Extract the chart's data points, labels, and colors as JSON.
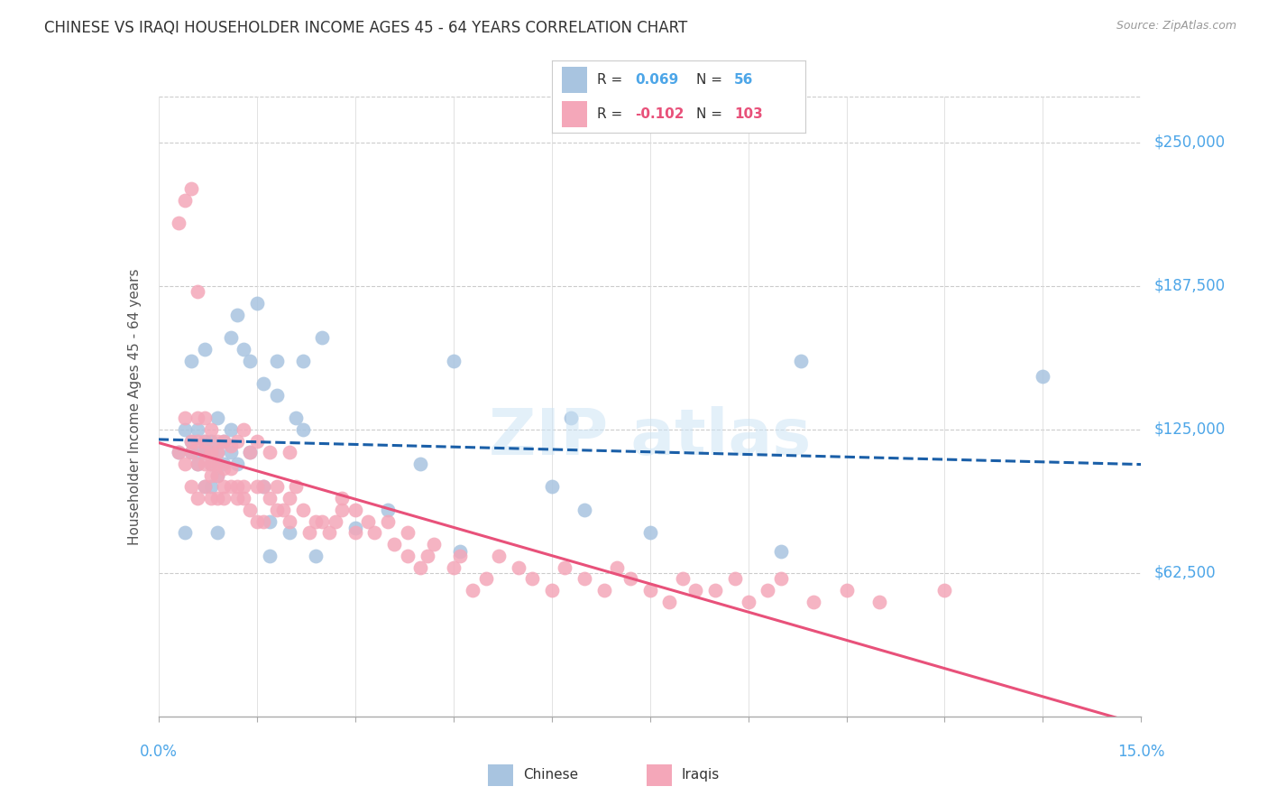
{
  "title": "CHINESE VS IRAQI HOUSEHOLDER INCOME AGES 45 - 64 YEARS CORRELATION CHART",
  "source": "Source: ZipAtlas.com",
  "ylabel": "Householder Income Ages 45 - 64 years",
  "ytick_labels": [
    "$62,500",
    "$125,000",
    "$187,500",
    "$250,000"
  ],
  "ytick_values": [
    62500,
    125000,
    187500,
    250000
  ],
  "ymin": 0,
  "ymax": 270000,
  "xmin": 0.0,
  "xmax": 0.15,
  "chinese_color": "#a8c4e0",
  "iraqi_color": "#f4a7b9",
  "chinese_line_color": "#1a5fa8",
  "iraqi_line_color": "#e8517a",
  "R_chinese": "0.069",
  "N_chinese": "56",
  "R_iraqi": "-0.102",
  "N_iraqi": "103",
  "chinese_scatter_x": [
    0.003,
    0.004,
    0.004,
    0.005,
    0.005,
    0.005,
    0.006,
    0.006,
    0.006,
    0.007,
    0.007,
    0.007,
    0.007,
    0.008,
    0.008,
    0.008,
    0.008,
    0.009,
    0.009,
    0.009,
    0.009,
    0.01,
    0.01,
    0.011,
    0.011,
    0.011,
    0.012,
    0.012,
    0.013,
    0.014,
    0.014,
    0.015,
    0.016,
    0.016,
    0.017,
    0.017,
    0.018,
    0.018,
    0.02,
    0.021,
    0.022,
    0.022,
    0.024,
    0.025,
    0.03,
    0.035,
    0.04,
    0.045,
    0.046,
    0.06,
    0.063,
    0.065,
    0.075,
    0.095,
    0.098,
    0.135
  ],
  "chinese_scatter_y": [
    115000,
    125000,
    80000,
    115000,
    120000,
    155000,
    110000,
    115000,
    125000,
    100000,
    115000,
    120000,
    160000,
    100000,
    110000,
    115000,
    120000,
    80000,
    105000,
    115000,
    130000,
    110000,
    120000,
    115000,
    125000,
    165000,
    110000,
    175000,
    160000,
    115000,
    155000,
    180000,
    100000,
    145000,
    70000,
    85000,
    140000,
    155000,
    80000,
    130000,
    125000,
    155000,
    70000,
    165000,
    82000,
    90000,
    110000,
    155000,
    72000,
    100000,
    130000,
    90000,
    80000,
    72000,
    155000,
    148000
  ],
  "iraqi_scatter_x": [
    0.003,
    0.003,
    0.004,
    0.004,
    0.004,
    0.005,
    0.005,
    0.005,
    0.005,
    0.006,
    0.006,
    0.006,
    0.006,
    0.006,
    0.007,
    0.007,
    0.007,
    0.007,
    0.007,
    0.008,
    0.008,
    0.008,
    0.008,
    0.008,
    0.009,
    0.009,
    0.009,
    0.009,
    0.009,
    0.01,
    0.01,
    0.01,
    0.01,
    0.011,
    0.011,
    0.011,
    0.012,
    0.012,
    0.012,
    0.013,
    0.013,
    0.013,
    0.014,
    0.014,
    0.015,
    0.015,
    0.015,
    0.016,
    0.016,
    0.017,
    0.017,
    0.018,
    0.018,
    0.019,
    0.02,
    0.02,
    0.02,
    0.021,
    0.022,
    0.023,
    0.024,
    0.025,
    0.026,
    0.027,
    0.028,
    0.028,
    0.03,
    0.03,
    0.032,
    0.033,
    0.035,
    0.036,
    0.038,
    0.038,
    0.04,
    0.041,
    0.042,
    0.045,
    0.046,
    0.048,
    0.05,
    0.052,
    0.055,
    0.057,
    0.06,
    0.062,
    0.065,
    0.068,
    0.07,
    0.072,
    0.075,
    0.078,
    0.08,
    0.082,
    0.085,
    0.088,
    0.09,
    0.093,
    0.095,
    0.1,
    0.105,
    0.11,
    0.12
  ],
  "iraqi_scatter_y": [
    115000,
    215000,
    110000,
    130000,
    225000,
    100000,
    115000,
    120000,
    230000,
    95000,
    110000,
    120000,
    130000,
    185000,
    100000,
    110000,
    115000,
    120000,
    130000,
    95000,
    105000,
    110000,
    115000,
    125000,
    95000,
    105000,
    110000,
    115000,
    120000,
    95000,
    100000,
    108000,
    120000,
    100000,
    108000,
    118000,
    95000,
    100000,
    120000,
    95000,
    100000,
    125000,
    90000,
    115000,
    85000,
    100000,
    120000,
    85000,
    100000,
    95000,
    115000,
    90000,
    100000,
    90000,
    85000,
    95000,
    115000,
    100000,
    90000,
    80000,
    85000,
    85000,
    80000,
    85000,
    90000,
    95000,
    80000,
    90000,
    85000,
    80000,
    85000,
    75000,
    70000,
    80000,
    65000,
    70000,
    75000,
    65000,
    70000,
    55000,
    60000,
    70000,
    65000,
    60000,
    55000,
    65000,
    60000,
    55000,
    65000,
    60000,
    55000,
    50000,
    60000,
    55000,
    55000,
    60000,
    50000,
    55000,
    60000,
    50000,
    55000,
    50000,
    55000
  ]
}
